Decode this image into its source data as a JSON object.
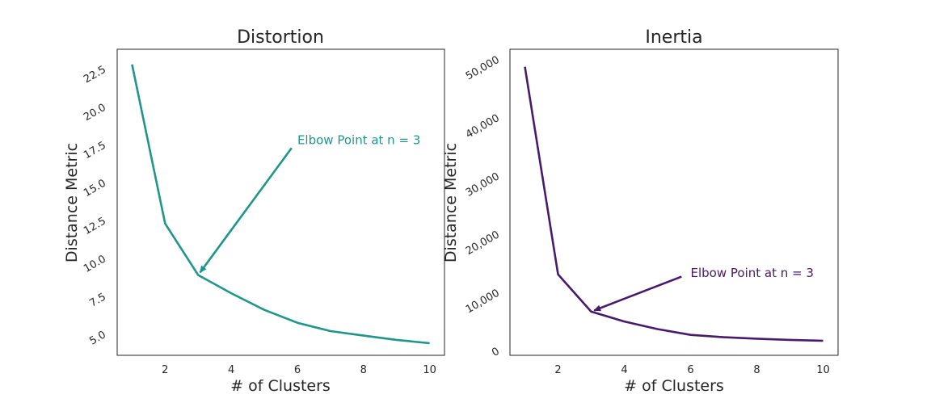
{
  "chart_data": [
    {
      "type": "line",
      "title": "Distortion",
      "xlabel": "# of Clusters",
      "ylabel": "Distance Metric",
      "color": "#1f968b",
      "x": [
        1,
        2,
        3,
        4,
        5,
        6,
        7,
        8,
        9,
        10
      ],
      "y": [
        22.8,
        12.3,
        8.9,
        7.7,
        6.6,
        5.75,
        5.2,
        4.9,
        4.62,
        4.4
      ],
      "xlim": [
        0.55,
        10.45
      ],
      "ylim": [
        3.6,
        23.8
      ],
      "xticks": [
        2,
        4,
        6,
        8,
        10
      ],
      "xtick_labels": [
        "2",
        "4",
        "6",
        "8",
        "10"
      ],
      "yticks": [
        5,
        7.5,
        10,
        12.5,
        15,
        17.5,
        20,
        22.5
      ],
      "ytick_labels": [
        "5.0",
        "7.5",
        "10.0",
        "12.5",
        "15.0",
        "17.5",
        "20.0",
        "22.5"
      ],
      "grid": false,
      "annotation": {
        "text": "Elbow Point at n = 3",
        "xy": [
          3,
          8.9
        ],
        "xytext": [
          6,
          17.8
        ]
      }
    },
    {
      "type": "line",
      "title": "Inertia",
      "xlabel": "# of Clusters",
      "ylabel": "Distance Metric",
      "color": "#481a6c",
      "x": [
        1,
        2,
        3,
        4,
        5,
        6,
        7,
        8,
        9,
        10
      ],
      "y": [
        48700,
        13100,
        6700,
        5000,
        3700,
        2700,
        2300,
        2050,
        1850,
        1700
      ],
      "xlim": [
        0.55,
        10.45
      ],
      "ylim": [
        -800,
        51700
      ],
      "xticks": [
        2,
        4,
        6,
        8,
        10
      ],
      "xtick_labels": [
        "2",
        "4",
        "6",
        "8",
        "10"
      ],
      "yticks": [
        0,
        10000,
        20000,
        30000,
        40000,
        50000
      ],
      "ytick_labels": [
        "0",
        "10,000",
        "20,000",
        "30,000",
        "40,000",
        "50,000"
      ],
      "grid": false,
      "annotation": {
        "text": "Elbow Point at n = 3",
        "xy": [
          3,
          6700
        ],
        "xytext": [
          6,
          13300
        ]
      }
    }
  ]
}
